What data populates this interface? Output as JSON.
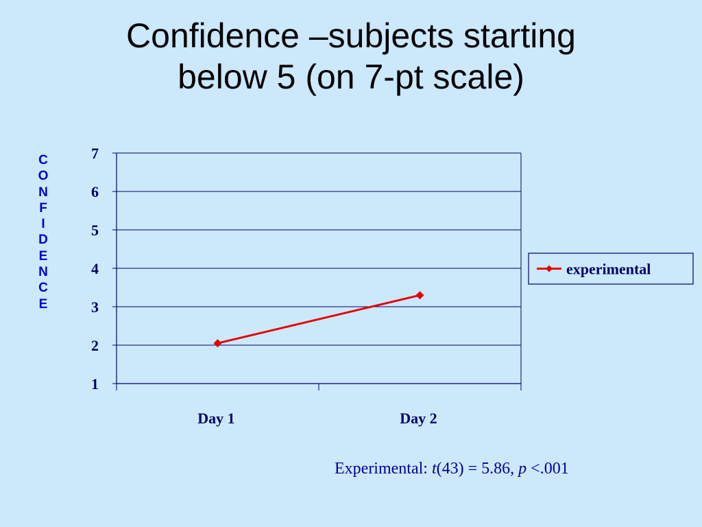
{
  "title": {
    "line1": "Confidence –subjects starting",
    "line2": "below 5 (on 7-pt scale)"
  },
  "colors": {
    "background": "#cce8fb",
    "series": "#e60000",
    "text_dark_blue": "#000066",
    "axis_label_blue": "#0000cc"
  },
  "chart_data": {
    "type": "line",
    "title": "",
    "xlabel": "",
    "ylabel": "CONFIDENCE",
    "categories": [
      "Day 1",
      "Day 2"
    ],
    "series": [
      {
        "name": "experimental",
        "values": [
          2.05,
          3.3
        ],
        "color": "#e60000",
        "marker": "diamond"
      }
    ],
    "ylim": [
      1,
      7
    ],
    "yticks": [
      1,
      2,
      3,
      4,
      5,
      6,
      7
    ],
    "grid": true,
    "legend": "right"
  },
  "stats": {
    "prefix": "Experimental: ",
    "t_symbol": "t",
    "t_args": "(43) = 5.86, ",
    "p_symbol": "p",
    "p_value": " <.001"
  }
}
